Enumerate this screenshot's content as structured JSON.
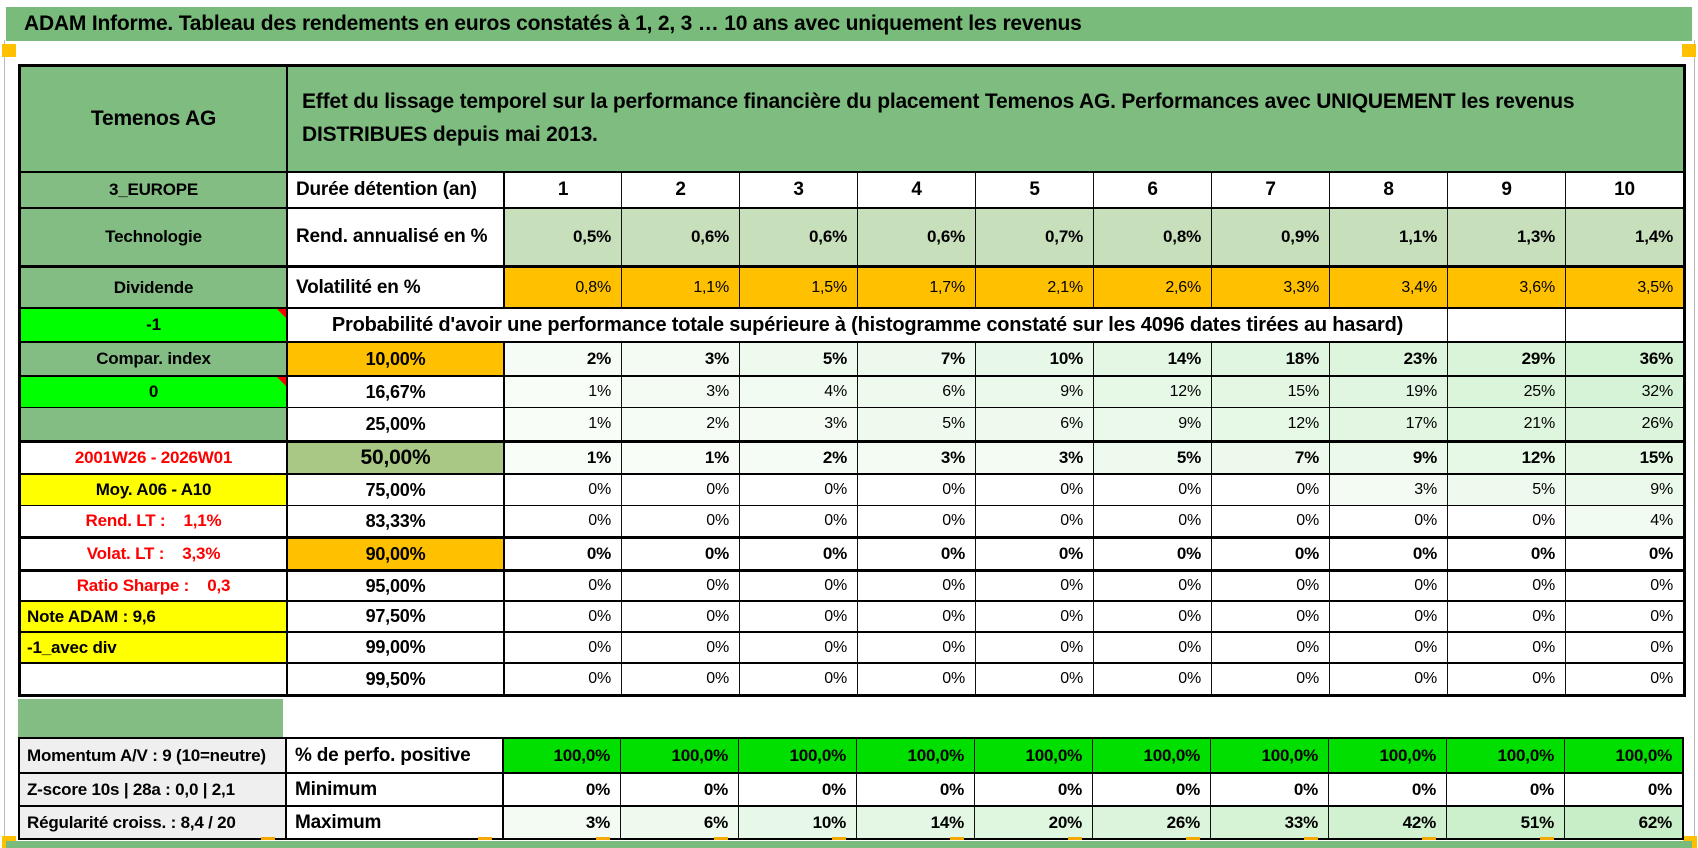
{
  "title": "ADAM Informe. Tableau des rendements en euros constatés à 1, 2, 3 … 10 ans avec uniquement les revenus",
  "palette": {
    "title_green": "#79BB7A",
    "header_green": "#7FBC80",
    "label_green": "#84BD84",
    "bright_green": "#00FF00",
    "orange": "#FFC000",
    "light_green": "#C8DFBC",
    "sage_green": "#A9C885",
    "yellow": "#FFFF00",
    "perf_green": "#00DF00",
    "gray_label": "#EFEFEF",
    "red_text": "#FF0000",
    "scale_green": "#00B400",
    "marker_orange": "#FFC000"
  },
  "header": {
    "asset": "Temenos AG",
    "description": "Effet du lissage temporel sur la performance financière du placement Temenos AG. Performances avec UNIQUEMENT les revenus DISTRIBUES depuis mai 2013."
  },
  "duration_row": {
    "label": "3_EUROPE",
    "name": "Durée détention (an)",
    "values": [
      "1",
      "2",
      "3",
      "4",
      "5",
      "6",
      "7",
      "8",
      "9",
      "10"
    ]
  },
  "measure_rows": [
    {
      "label": "Technologie",
      "name": "Rend. annualisé en %",
      "fill": "light_green",
      "bold": true,
      "values": [
        "0,5%",
        "0,6%",
        "0,6%",
        "0,6%",
        "0,7%",
        "0,8%",
        "0,9%",
        "1,1%",
        "1,3%",
        "1,4%"
      ]
    },
    {
      "label": "Dividende",
      "name": "Volatilité en %",
      "fill": "orange",
      "bold": false,
      "values": [
        "0,8%",
        "1,1%",
        "1,5%",
        "1,7%",
        "2,1%",
        "2,6%",
        "3,3%",
        "3,4%",
        "3,6%",
        "3,5%"
      ]
    }
  ],
  "prob_header": {
    "label": "-1",
    "text": "Probabilité d'avoir une performance totale supérieure à (histogramme constaté sur les 4096 dates tirées au hasard)"
  },
  "prob_rows": [
    {
      "label": "Compar. index",
      "label_style": "green",
      "threshold": "10,00%",
      "threshold_style": "orange",
      "bold": true,
      "values": [
        "2%",
        "3%",
        "5%",
        "7%",
        "10%",
        "14%",
        "18%",
        "23%",
        "29%",
        "36%"
      ]
    },
    {
      "label": "0",
      "label_style": "bright",
      "comment": true,
      "threshold": "16,67%",
      "threshold_style": "white",
      "bold": false,
      "values": [
        "1%",
        "3%",
        "4%",
        "6%",
        "9%",
        "12%",
        "15%",
        "19%",
        "25%",
        "32%"
      ]
    },
    {
      "label": "",
      "label_style": "green",
      "threshold": "25,00%",
      "threshold_style": "white",
      "bold": false,
      "values": [
        "1%",
        "2%",
        "3%",
        "5%",
        "6%",
        "9%",
        "12%",
        "17%",
        "21%",
        "26%"
      ]
    },
    {
      "label": "2001W26 - 2026W01",
      "label_style": "red_text",
      "threshold": "50,00%",
      "threshold_style": "sage",
      "bold": true,
      "values": [
        "1%",
        "1%",
        "2%",
        "3%",
        "3%",
        "5%",
        "7%",
        "9%",
        "12%",
        "15%"
      ]
    },
    {
      "label": "Moy. A06 - A10",
      "label_style": "yellow_center",
      "threshold": "75,00%",
      "threshold_style": "white",
      "bold": false,
      "values": [
        "0%",
        "0%",
        "0%",
        "0%",
        "0%",
        "0%",
        "0%",
        "3%",
        "5%",
        "9%"
      ]
    },
    {
      "label": "Rend. LT :    1,1%",
      "label_style": "red_text",
      "threshold": "83,33%",
      "threshold_style": "white",
      "bold": false,
      "values": [
        "0%",
        "0%",
        "0%",
        "0%",
        "0%",
        "0%",
        "0%",
        "0%",
        "0%",
        "4%"
      ]
    },
    {
      "label": "Volat. LT :    3,3%",
      "label_style": "red_text",
      "threshold": "90,00%",
      "threshold_style": "orange",
      "bold": true,
      "values": [
        "0%",
        "0%",
        "0%",
        "0%",
        "0%",
        "0%",
        "0%",
        "0%",
        "0%",
        "0%"
      ]
    },
    {
      "label": "Ratio Sharpe :    0,3",
      "label_style": "red_text",
      "threshold": "95,00%",
      "threshold_style": "white",
      "bold": false,
      "values": [
        "0%",
        "0%",
        "0%",
        "0%",
        "0%",
        "0%",
        "0%",
        "0%",
        "0%",
        "0%"
      ]
    },
    {
      "label": "Note ADAM : 9,6",
      "label_style": "yellow_left",
      "threshold": "97,50%",
      "threshold_style": "white",
      "bold": false,
      "values": [
        "0%",
        "0%",
        "0%",
        "0%",
        "0%",
        "0%",
        "0%",
        "0%",
        "0%",
        "0%"
      ]
    },
    {
      "label": "-1_avec div",
      "label_style": "yellow_left",
      "threshold": "99,00%",
      "threshold_style": "white",
      "bold": false,
      "values": [
        "0%",
        "0%",
        "0%",
        "0%",
        "0%",
        "0%",
        "0%",
        "0%",
        "0%",
        "0%"
      ]
    },
    {
      "label": "",
      "label_style": "white",
      "threshold": "99,50%",
      "threshold_style": "white",
      "bold": false,
      "values": [
        "0%",
        "0%",
        "0%",
        "0%",
        "0%",
        "0%",
        "0%",
        "0%",
        "0%",
        "0%"
      ]
    }
  ],
  "bottom_rows": [
    {
      "label": "Momentum A/V : 9 (10=neutre)",
      "name": "% de perfo. positive",
      "fill": "perf_green",
      "bold": true,
      "values": [
        "100,0%",
        "100,0%",
        "100,0%",
        "100,0%",
        "100,0%",
        "100,0%",
        "100,0%",
        "100,0%",
        "100,0%",
        "100,0%"
      ]
    },
    {
      "label": "Z-score 10s | 28a : 0,0 | 2,1",
      "name": "Minimum",
      "fill": "white",
      "bold": true,
      "values": [
        "0%",
        "0%",
        "0%",
        "0%",
        "0%",
        "0%",
        "0%",
        "0%",
        "0%",
        "0%"
      ]
    },
    {
      "label": "Régularité croiss. : 8,4 / 20",
      "name": "Maximum",
      "fill": "scale",
      "bold": true,
      "values": [
        "3%",
        "6%",
        "10%",
        "14%",
        "20%",
        "26%",
        "33%",
        "42%",
        "51%",
        "62%"
      ]
    }
  ]
}
